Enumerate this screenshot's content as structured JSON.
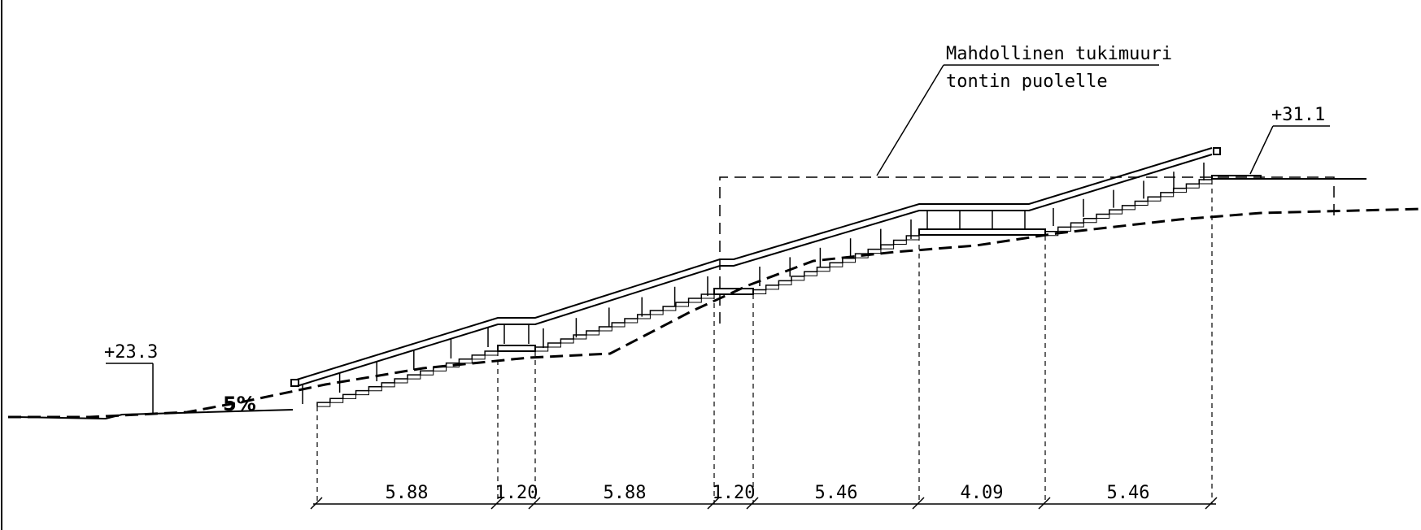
{
  "drawing": {
    "annotation": {
      "line1": "Mahdollinen tukimuuri",
      "line2": "tontin puolelle"
    },
    "elevation_left": "+23.3",
    "elevation_right": "+31.1",
    "slope": "5%",
    "dimensions": [
      "5.88",
      "1.20",
      "5.88",
      "1.20",
      "5.46",
      "4.09",
      "5.46"
    ]
  }
}
